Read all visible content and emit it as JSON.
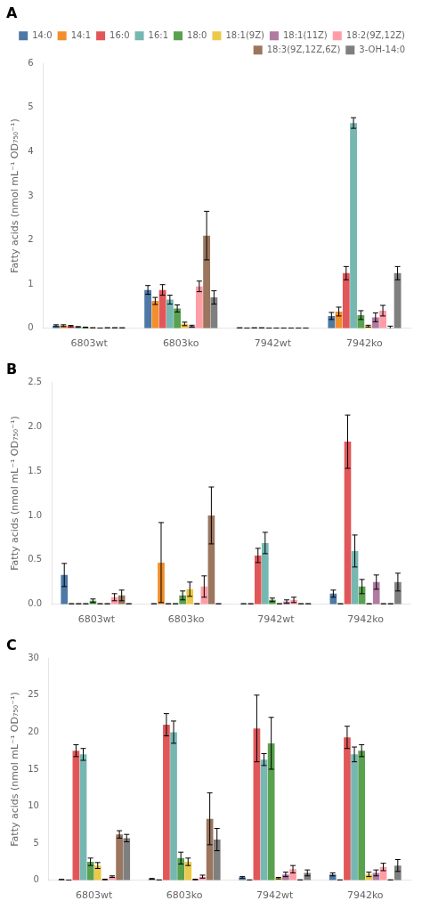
{
  "chart_data": [
    {
      "type": "bar",
      "title": "A",
      "y_label": "Fatty acids (nmol mL⁻¹ OD₇₅₀⁻¹)",
      "categories": [
        "6803wt",
        "6803ko",
        "7942wt",
        "7942ko"
      ],
      "ylim": [
        0,
        6
      ],
      "yticks": [
        0,
        1,
        2,
        3,
        4,
        5,
        6
      ],
      "grid": false,
      "legend": "top",
      "series": [
        {
          "name": "14:0",
          "color": "#4e79a7",
          "values": [
            0.06,
            0.87,
            0.01,
            0.28
          ],
          "errors": [
            0.02,
            0.1,
            0.003,
            0.08
          ]
        },
        {
          "name": "14:1",
          "color": "#f28e2b",
          "values": [
            0.06,
            0.62,
            0.005,
            0.38
          ],
          "errors": [
            0.02,
            0.08,
            0.003,
            0.1
          ]
        },
        {
          "name": "16:0",
          "color": "#e15759",
          "values": [
            0.05,
            0.87,
            0.01,
            1.25
          ],
          "errors": [
            0.015,
            0.12,
            0.003,
            0.15
          ]
        },
        {
          "name": "16:1",
          "color": "#76b7b2",
          "values": [
            0.03,
            0.65,
            0.01,
            4.65
          ],
          "errors": [
            0.01,
            0.1,
            0.003,
            0.12
          ]
        },
        {
          "name": "18:0",
          "color": "#59a14f",
          "values": [
            0.02,
            0.45,
            0.005,
            0.3
          ],
          "errors": [
            0.008,
            0.08,
            0.003,
            0.1
          ]
        },
        {
          "name": "18:1(9Z)",
          "color": "#edc948",
          "values": [
            0.01,
            0.1,
            0.005,
            0.05
          ],
          "errors": [
            0.005,
            0.04,
            0.003,
            0.02
          ]
        },
        {
          "name": "18:1(11Z)",
          "color": "#b07aa1",
          "values": [
            0.005,
            0.05,
            0.005,
            0.25
          ],
          "errors": [
            0.003,
            0.02,
            0.003,
            0.1
          ]
        },
        {
          "name": "18:2(9Z,12Z)",
          "color": "#ff9da7",
          "values": [
            0.01,
            0.95,
            0.005,
            0.4
          ],
          "errors": [
            0.005,
            0.12,
            0.003,
            0.12
          ]
        },
        {
          "name": "18:3(9Z,12Z,6Z)",
          "color": "#9c755f",
          "values": [
            0.01,
            2.1,
            0.005,
            0.01
          ],
          "errors": [
            0.005,
            0.55,
            0.003,
            0.04
          ]
        },
        {
          "name": "3-OH-14:0",
          "color": "#7f7f7f",
          "values": [
            0.01,
            0.7,
            0.005,
            1.25
          ],
          "errors": [
            0.003,
            0.15,
            0.003,
            0.15
          ]
        }
      ]
    },
    {
      "type": "bar",
      "title": "B",
      "y_label": "Fatty acids (nmol mL⁻¹ OD₇₅₀⁻¹)",
      "categories": [
        "6803wt",
        "6803ko",
        "7942wt",
        "7942ko"
      ],
      "ylim": [
        0,
        2.5
      ],
      "yticks": [
        {
          "value": 0,
          "label": "0.0"
        },
        0.5,
        {
          "value": 1,
          "label": "1.0"
        },
        1.5,
        {
          "value": 2,
          "label": "2.0"
        },
        2.5
      ],
      "grid": false,
      "series": [
        {
          "name": "14:0",
          "color": "#4e79a7",
          "values": [
            0.33,
            0.005,
            0.005,
            0.12
          ],
          "errors": [
            0.13,
            0.003,
            0.003,
            0.04
          ]
        },
        {
          "name": "14:1",
          "color": "#f28e2b",
          "values": [
            0.005,
            0.47,
            0.005,
            0.005
          ],
          "errors": [
            0.003,
            0.45,
            0.003,
            0.003
          ]
        },
        {
          "name": "16:0",
          "color": "#e15759",
          "values": [
            0.005,
            0.005,
            0.55,
            1.83
          ],
          "errors": [
            0.003,
            0.003,
            0.08,
            0.3
          ]
        },
        {
          "name": "16:1",
          "color": "#76b7b2",
          "values": [
            0.005,
            0.005,
            0.69,
            0.6
          ],
          "errors": [
            0.003,
            0.003,
            0.12,
            0.18
          ]
        },
        {
          "name": "18:0",
          "color": "#59a14f",
          "values": [
            0.04,
            0.1,
            0.05,
            0.2
          ],
          "errors": [
            0.02,
            0.05,
            0.02,
            0.08
          ]
        },
        {
          "name": "18:1(9Z)",
          "color": "#edc948",
          "values": [
            0.005,
            0.17,
            0.005,
            0.005
          ],
          "errors": [
            0.003,
            0.08,
            0.003,
            0.003
          ]
        },
        {
          "name": "18:1(11Z)",
          "color": "#b07aa1",
          "values": [
            0.005,
            0.005,
            0.03,
            0.25
          ],
          "errors": [
            0.003,
            0.003,
            0.02,
            0.08
          ]
        },
        {
          "name": "18:2(9Z,12Z)",
          "color": "#ff9da7",
          "values": [
            0.08,
            0.2,
            0.05,
            0.005
          ],
          "errors": [
            0.04,
            0.12,
            0.03,
            0.003
          ]
        },
        {
          "name": "18:3(9Z,12Z,6Z)",
          "color": "#9c755f",
          "values": [
            0.1,
            1.0,
            0.005,
            0.005
          ],
          "errors": [
            0.06,
            0.32,
            0.003,
            0.003
          ]
        },
        {
          "name": "3-OH-14:0",
          "color": "#7f7f7f",
          "values": [
            0.005,
            0.005,
            0.005,
            0.25
          ],
          "errors": [
            0.003,
            0.003,
            0.003,
            0.1
          ]
        }
      ]
    },
    {
      "type": "bar",
      "title": "C",
      "y_label": "Fatty acids (nmol mL⁻¹ OD₇₅₀⁻¹)",
      "categories": [
        "6803wt",
        "6803ko",
        "7942wt",
        "7942ko"
      ],
      "ylim": [
        0,
        30
      ],
      "yticks": [
        0,
        5,
        10,
        15,
        20,
        25,
        30
      ],
      "grid": false,
      "series": [
        {
          "name": "14:0",
          "color": "#4e79a7",
          "values": [
            0.1,
            0.2,
            0.4,
            0.8
          ],
          "errors": [
            0.02,
            0.05,
            0.1,
            0.2
          ]
        },
        {
          "name": "14:1",
          "color": "#f28e2b",
          "values": [
            0.03,
            0.05,
            0.05,
            0.05
          ],
          "errors": [
            0.01,
            0.01,
            0.01,
            0.01
          ]
        },
        {
          "name": "16:0",
          "color": "#e15759",
          "values": [
            17.5,
            21.0,
            20.5,
            19.3
          ],
          "errors": [
            0.8,
            1.5,
            4.5,
            1.5
          ]
        },
        {
          "name": "16:1",
          "color": "#76b7b2",
          "values": [
            17.0,
            20.0,
            16.3,
            17.0
          ],
          "errors": [
            0.8,
            1.5,
            0.8,
            1.0
          ]
        },
        {
          "name": "18:0",
          "color": "#59a14f",
          "values": [
            2.5,
            3.0,
            18.5,
            17.5
          ],
          "errors": [
            0.5,
            0.8,
            3.5,
            0.8
          ]
        },
        {
          "name": "18:1(9Z)",
          "color": "#edc948",
          "values": [
            2.0,
            2.5,
            0.3,
            0.8
          ],
          "errors": [
            0.4,
            0.5,
            0.1,
            0.3
          ]
        },
        {
          "name": "18:1(11Z)",
          "color": "#b07aa1",
          "values": [
            0.1,
            0.1,
            0.8,
            1.0
          ],
          "errors": [
            0.05,
            0.05,
            0.3,
            0.4
          ]
        },
        {
          "name": "18:2(9Z,12Z)",
          "color": "#ff9da7",
          "values": [
            0.5,
            0.5,
            1.5,
            1.8
          ],
          "errors": [
            0.1,
            0.2,
            0.5,
            0.5
          ]
        },
        {
          "name": "18:3(9Z,12Z,6Z)",
          "color": "#9c755f",
          "values": [
            6.2,
            8.3,
            0.05,
            0.05
          ],
          "errors": [
            0.5,
            3.5,
            0.02,
            0.02
          ]
        },
        {
          "name": "3-OH-14:0",
          "color": "#7f7f7f",
          "values": [
            5.7,
            5.5,
            1.0,
            2.0
          ],
          "errors": [
            0.5,
            1.5,
            0.4,
            0.8
          ]
        }
      ]
    }
  ]
}
